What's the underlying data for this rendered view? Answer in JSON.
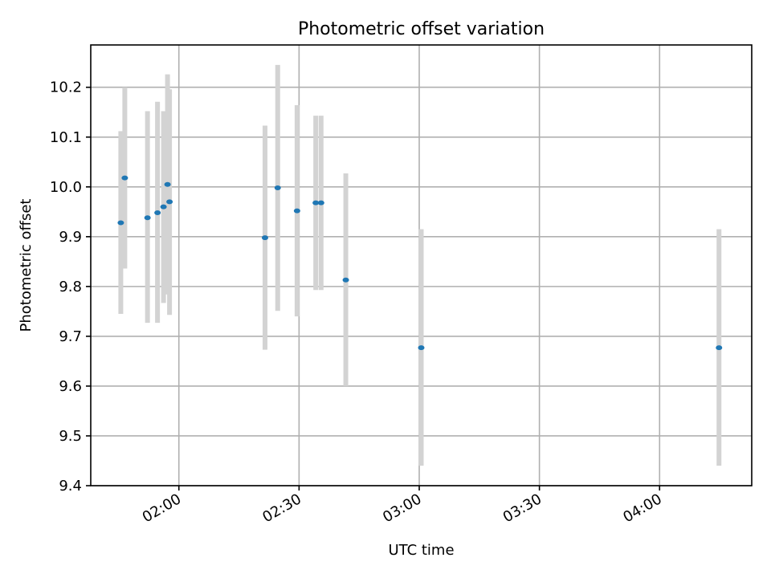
{
  "chart_data": {
    "type": "scatter",
    "title": "Photometric offset variation",
    "xlabel": "UTC time",
    "ylabel": "Photometric offset",
    "x_axis_type": "time",
    "xlim": [
      "01:38",
      "04:23"
    ],
    "ylim": [
      9.4,
      10.285
    ],
    "x_ticks": [
      "02:00",
      "02:30",
      "03:00",
      "03:30",
      "04:00"
    ],
    "y_ticks": [
      "9.4",
      "9.5",
      "9.6",
      "9.7",
      "9.8",
      "9.9",
      "10.0",
      "10.1",
      "10.2"
    ],
    "grid": true,
    "legend": false,
    "colors": {
      "points": "#1f77b4",
      "error_bars": "#d3d3d3",
      "grid": "#b0b0b0"
    },
    "series": [
      {
        "points": [
          {
            "x": "01:45:30",
            "y": 9.928,
            "y_low": 9.745,
            "y_high": 10.112
          },
          {
            "x": "01:46:30",
            "y": 10.018,
            "y_low": 9.836,
            "y_high": 10.2
          },
          {
            "x": "01:52:10",
            "y": 9.938,
            "y_low": 9.727,
            "y_high": 10.152
          },
          {
            "x": "01:54:40",
            "y": 9.948,
            "y_low": 9.727,
            "y_high": 10.171
          },
          {
            "x": "01:56:10",
            "y": 9.96,
            "y_low": 9.767,
            "y_high": 10.152
          },
          {
            "x": "01:57:10",
            "y": 10.005,
            "y_low": 9.784,
            "y_high": 10.226
          },
          {
            "x": "01:57:40",
            "y": 9.97,
            "y_low": 9.743,
            "y_high": 10.196
          },
          {
            "x": "02:21:30",
            "y": 9.898,
            "y_low": 9.673,
            "y_high": 10.123
          },
          {
            "x": "02:24:40",
            "y": 9.998,
            "y_low": 9.751,
            "y_high": 10.245
          },
          {
            "x": "02:29:30",
            "y": 9.952,
            "y_low": 9.74,
            "y_high": 10.164
          },
          {
            "x": "02:34:10",
            "y": 9.968,
            "y_low": 9.793,
            "y_high": 10.143
          },
          {
            "x": "02:35:30",
            "y": 9.968,
            "y_low": 9.793,
            "y_high": 10.143
          },
          {
            "x": "02:41:40",
            "y": 9.813,
            "y_low": 9.6,
            "y_high": 10.027
          },
          {
            "x": "03:00:30",
            "y": 9.677,
            "y_low": 9.44,
            "y_high": 9.915
          },
          {
            "x": "04:14:50",
            "y": 9.677,
            "y_low": 9.44,
            "y_high": 9.915
          }
        ]
      }
    ]
  }
}
